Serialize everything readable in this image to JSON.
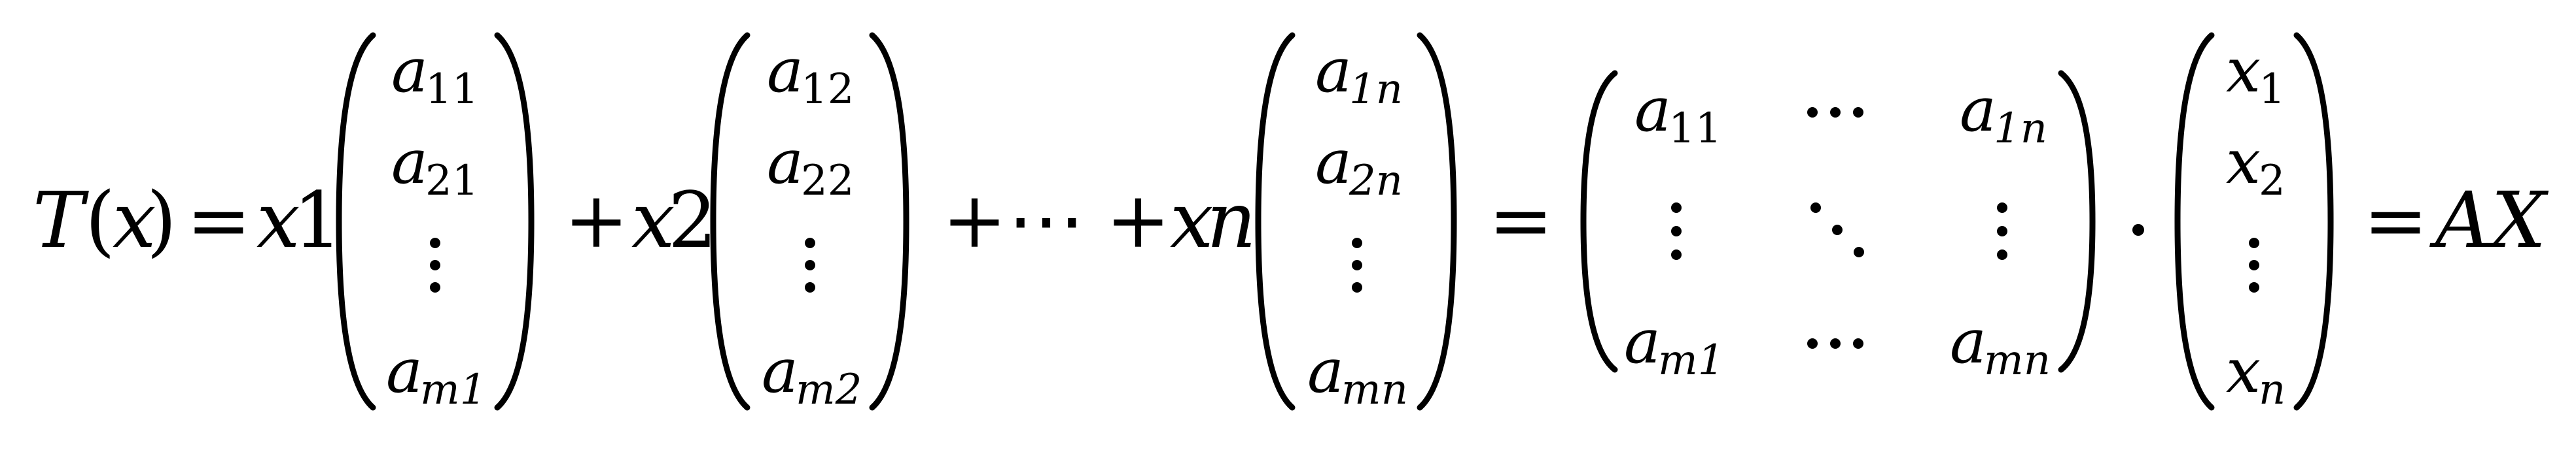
{
  "equation": {
    "lhs": {
      "fn": "T",
      "open": "(",
      "arg": "x",
      "close": ")"
    },
    "equals": "=",
    "terms": [
      {
        "coef": {
          "base": "x",
          "num": "1"
        },
        "vector": [
          {
            "base": "a",
            "sub": "11"
          },
          {
            "base": "a",
            "sub": "21"
          },
          {
            "vdots": "⋮"
          },
          {
            "base": "a",
            "sub": "m1"
          }
        ]
      },
      {
        "coef": {
          "base": "x",
          "num": "2"
        },
        "vector": [
          {
            "base": "a",
            "sub": "12"
          },
          {
            "base": "a",
            "sub": "22"
          },
          {
            "vdots": "⋮"
          },
          {
            "base": "a",
            "sub": "m2"
          }
        ]
      },
      {
        "coef": {
          "base": "x",
          "num": "n"
        },
        "vector": [
          {
            "base": "a",
            "sub": "1n"
          },
          {
            "base": "a",
            "sub": "2n"
          },
          {
            "vdots": "⋮"
          },
          {
            "base": "a",
            "sub": "mn"
          }
        ]
      }
    ],
    "plus": "+",
    "cdots": "⋯",
    "matrix": {
      "rows": [
        [
          {
            "base": "a",
            "sub": "11"
          },
          {
            "text": "⋯"
          },
          {
            "base": "a",
            "sub": "1n"
          }
        ],
        [
          {
            "text": "⋮"
          },
          {
            "text": "⋱"
          },
          {
            "text": "⋮"
          }
        ],
        [
          {
            "base": "a",
            "sub": "m1"
          },
          {
            "text": "⋯"
          },
          {
            "base": "a",
            "sub": "mn"
          }
        ]
      ]
    },
    "times": "·",
    "x_vector": [
      {
        "base": "x",
        "sub": "1"
      },
      {
        "base": "x",
        "sub": "2"
      },
      {
        "vdots": "⋮"
      },
      {
        "base": "x",
        "sub": "n"
      }
    ],
    "rhs": "AX"
  }
}
